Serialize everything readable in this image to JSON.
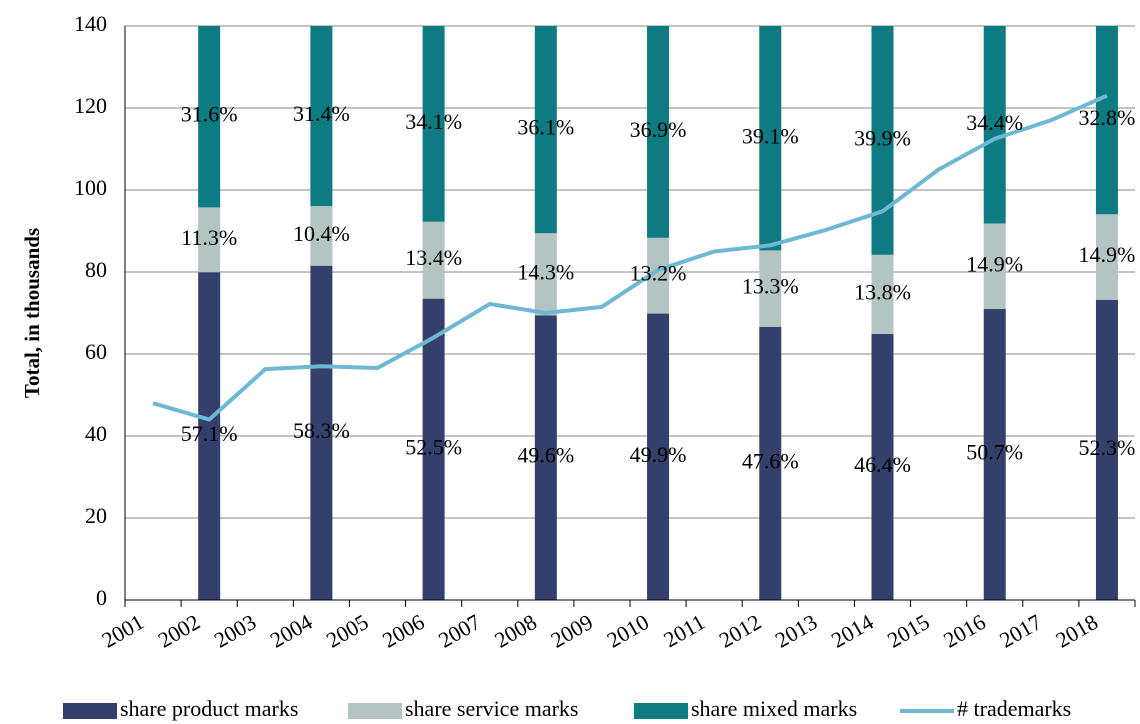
{
  "chart_data": {
    "type": "combo",
    "y_label": "Total, in thousands",
    "categories": [
      "2001",
      "2002",
      "2003",
      "2004",
      "2005",
      "2006",
      "2007",
      "2008",
      "2009",
      "2010",
      "2011",
      "2012",
      "2013",
      "2014",
      "2015",
      "2016",
      "2017",
      "2018"
    ],
    "ylim": [
      0,
      140
    ],
    "yticks": [
      0,
      20,
      40,
      60,
      80,
      100,
      120,
      140
    ],
    "series": [
      {
        "name": "share product marks",
        "type": "bar",
        "color": "#34406b",
        "values": [
          null,
          57.1,
          null,
          58.3,
          null,
          52.5,
          null,
          49.6,
          null,
          49.9,
          null,
          47.6,
          null,
          46.4,
          null,
          50.7,
          null,
          52.3
        ],
        "value_labels": [
          null,
          "57.1%",
          null,
          "58.3%",
          null,
          "52.5%",
          null,
          "49.6%",
          null,
          "49.9%",
          null,
          "47.6%",
          null,
          "46.4%",
          null,
          "50.7%",
          null,
          "52.3%"
        ]
      },
      {
        "name": "share service marks",
        "type": "bar",
        "color": "#b4c4c2",
        "values": [
          null,
          11.3,
          null,
          10.4,
          null,
          13.4,
          null,
          14.3,
          null,
          13.2,
          null,
          13.3,
          null,
          13.8,
          null,
          14.9,
          null,
          14.9
        ],
        "value_labels": [
          null,
          "11.3%",
          null,
          "10.4%",
          null,
          "13.4%",
          null,
          "14.3%",
          null,
          "13.2%",
          null,
          "13.3%",
          null,
          "13.8%",
          null,
          "14.9%",
          null,
          "14.9%"
        ]
      },
      {
        "name": "share mixed marks",
        "type": "bar",
        "color": "#0e7a82",
        "values": [
          null,
          31.6,
          null,
          31.4,
          null,
          34.1,
          null,
          36.1,
          null,
          36.9,
          null,
          39.1,
          null,
          39.9,
          null,
          34.4,
          null,
          32.8
        ],
        "value_labels": [
          null,
          "31.6%",
          null,
          "31.4%",
          null,
          "34.1%",
          null,
          "36.1%",
          null,
          "36.9%",
          null,
          "39.1%",
          null,
          "39.9%",
          null,
          "34.4%",
          null,
          "32.8%"
        ]
      },
      {
        "name": "# trademarks",
        "type": "line",
        "color": "#6fb8d4",
        "values": [
          48,
          44,
          56.3,
          57,
          56.6,
          64,
          72.2,
          70,
          71.5,
          80.5,
          85,
          86.5,
          90.3,
          94.8,
          105,
          112.5,
          117,
          123
        ]
      }
    ]
  }
}
